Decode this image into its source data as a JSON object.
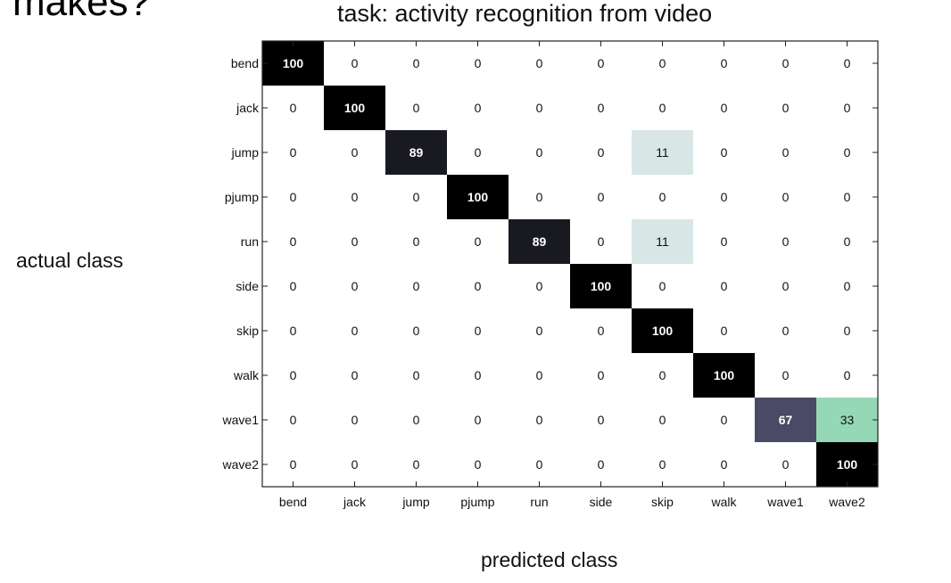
{
  "slide": {
    "heading_fragment": "makes?",
    "task_title": "task: activity recognition from video",
    "y_axis_label": "actual class",
    "x_axis_label": "predicted class"
  },
  "chart_data": {
    "type": "heatmap",
    "title": "task: activity recognition from video",
    "xlabel": "predicted class",
    "ylabel": "actual class",
    "value_unit": "percent",
    "row_labels": [
      "bend",
      "jack",
      "jump",
      "pjump",
      "run",
      "side",
      "skip",
      "walk",
      "wave1",
      "wave2"
    ],
    "col_labels": [
      "bend",
      "jack",
      "jump",
      "pjump",
      "run",
      "side",
      "skip",
      "walk",
      "wave1",
      "wave2"
    ],
    "values": [
      [
        100,
        0,
        0,
        0,
        0,
        0,
        0,
        0,
        0,
        0
      ],
      [
        0,
        100,
        0,
        0,
        0,
        0,
        0,
        0,
        0,
        0
      ],
      [
        0,
        0,
        89,
        0,
        0,
        0,
        11,
        0,
        0,
        0
      ],
      [
        0,
        0,
        0,
        100,
        0,
        0,
        0,
        0,
        0,
        0
      ],
      [
        0,
        0,
        0,
        0,
        89,
        0,
        11,
        0,
        0,
        0
      ],
      [
        0,
        0,
        0,
        0,
        0,
        100,
        0,
        0,
        0,
        0
      ],
      [
        0,
        0,
        0,
        0,
        0,
        0,
        100,
        0,
        0,
        0
      ],
      [
        0,
        0,
        0,
        0,
        0,
        0,
        0,
        100,
        0,
        0
      ],
      [
        0,
        0,
        0,
        0,
        0,
        0,
        0,
        0,
        67,
        33
      ],
      [
        0,
        0,
        0,
        0,
        0,
        0,
        0,
        0,
        0,
        100
      ]
    ],
    "colormap": "bone_reversed",
    "grid": false
  }
}
